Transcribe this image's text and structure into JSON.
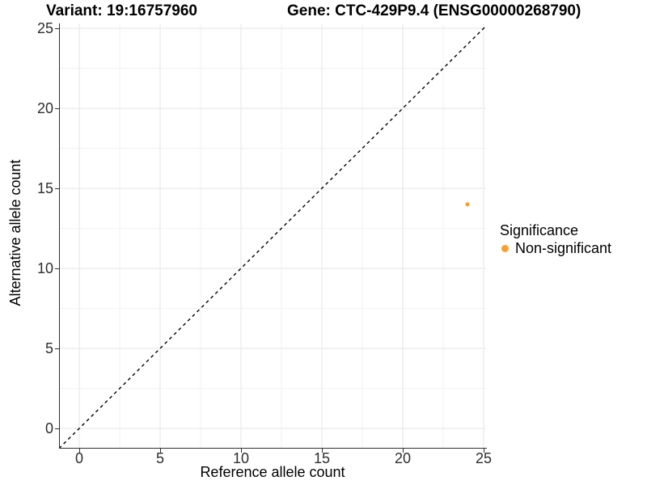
{
  "titles": {
    "variant": "Variant: 19:16757960",
    "gene": "Gene: CTC-429P9.4 (ENSG00000268790)"
  },
  "axes": {
    "x": {
      "label": "Reference allele count",
      "tick_labels": [
        "0",
        "5",
        "10",
        "15",
        "20",
        "25"
      ],
      "tick_values": [
        0,
        5,
        10,
        15,
        20,
        25
      ]
    },
    "y": {
      "label": "Alternative allele count",
      "tick_labels": [
        "0",
        "5",
        "10",
        "15",
        "20",
        "25"
      ],
      "tick_values": [
        0,
        5,
        10,
        15,
        20,
        25
      ]
    }
  },
  "legend": {
    "title": "Significance",
    "items": [
      {
        "label": "Non-significant",
        "color": "#F9A02C"
      }
    ]
  },
  "chart_data": {
    "type": "scatter",
    "title": "Variant: 19:16757960  /  Gene: CTC-429P9.4 (ENSG00000268790)",
    "xlabel": "Reference allele count",
    "ylabel": "Alternative allele count",
    "xlim": [
      -1.25,
      25.15
    ],
    "ylim": [
      -1.25,
      25.3
    ],
    "x_ticks": [
      0,
      5,
      10,
      15,
      20,
      25
    ],
    "y_ticks": [
      0,
      5,
      10,
      15,
      20,
      25
    ],
    "minor_ticks": [
      2.5,
      7.5,
      12.5,
      17.5,
      22.5
    ],
    "grid": "major+minor",
    "legend_position": "right",
    "series": [
      {
        "name": "Non-significant",
        "color": "#F9A02C",
        "marker": "circle",
        "points": [
          {
            "x": 24,
            "y": 14
          }
        ]
      }
    ],
    "identity_line": {
      "slope": 1,
      "intercept": 0,
      "style": "dashed",
      "color": "#000000"
    }
  },
  "colors": {
    "background": "#FFFFFF",
    "grid_major": "#E5E5E5",
    "grid_minor": "#F2F2F2",
    "axis": "#2F2F2F",
    "tick_text": "#2E2E2E",
    "point": "#F9A02C"
  }
}
